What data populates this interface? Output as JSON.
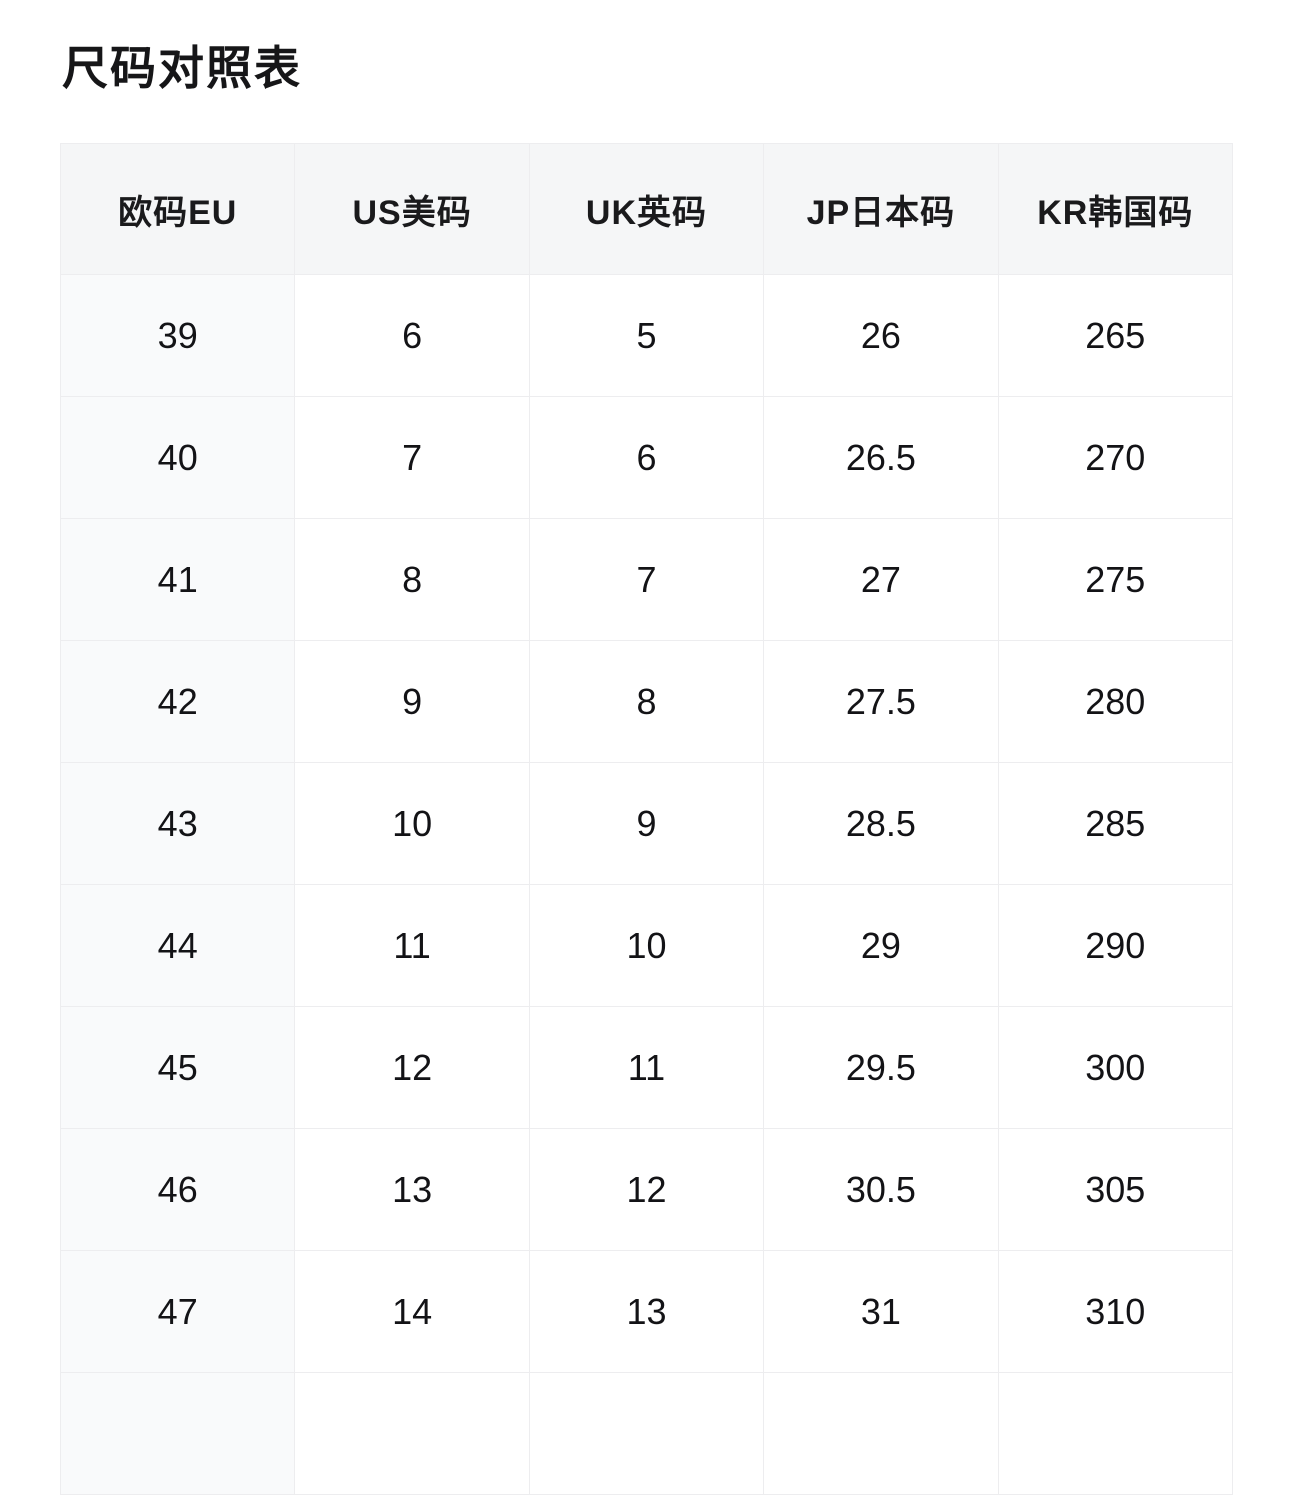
{
  "page": {
    "title": "尺码对照表"
  },
  "colors": {
    "header_bg": "#f5f6f7",
    "first_col_bg": "#f9fafb",
    "border": "#ededef",
    "text": "#161618",
    "page_bg": "#ffffff"
  },
  "table": {
    "columns": [
      {
        "key": "eu",
        "label": "欧码EU"
      },
      {
        "key": "us",
        "label": "US美码"
      },
      {
        "key": "uk",
        "label": "UK英码"
      },
      {
        "key": "jp",
        "label": "JP日本码"
      },
      {
        "key": "kr",
        "label": "KR韩国码"
      }
    ],
    "rows": [
      [
        "39",
        "6",
        "5",
        "26",
        "265"
      ],
      [
        "40",
        "7",
        "6",
        "26.5",
        "270"
      ],
      [
        "41",
        "8",
        "7",
        "27",
        "275"
      ],
      [
        "42",
        "9",
        "8",
        "27.5",
        "280"
      ],
      [
        "43",
        "10",
        "9",
        "28.5",
        "285"
      ],
      [
        "44",
        "11",
        "10",
        "29",
        "290"
      ],
      [
        "45",
        "12",
        "11",
        "29.5",
        "300"
      ],
      [
        "46",
        "13",
        "12",
        "30.5",
        "305"
      ],
      [
        "47",
        "14",
        "13",
        "31",
        "310"
      ]
    ],
    "partial_row_visible": true
  },
  "chart_data": {
    "type": "table",
    "title": "尺码对照表",
    "columns": [
      "欧码EU",
      "US美码",
      "UK英码",
      "JP日本码",
      "KR韩国码"
    ],
    "rows": [
      [
        39,
        6,
        5,
        26,
        265
      ],
      [
        40,
        7,
        6,
        26.5,
        270
      ],
      [
        41,
        8,
        7,
        27,
        275
      ],
      [
        42,
        9,
        8,
        27.5,
        280
      ],
      [
        43,
        10,
        9,
        28.5,
        285
      ],
      [
        44,
        11,
        10,
        29,
        290
      ],
      [
        45,
        12,
        11,
        29.5,
        300
      ],
      [
        46,
        13,
        12,
        30.5,
        305
      ],
      [
        47,
        14,
        13,
        31,
        310
      ]
    ],
    "layout_hints": {
      "header_shaded": true,
      "first_column_shaded": true,
      "grid": true
    }
  }
}
